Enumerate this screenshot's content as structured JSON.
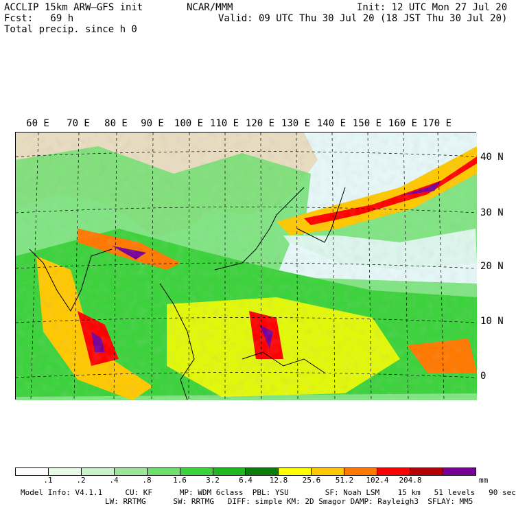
{
  "header": {
    "model": "ACCLIP 15km ARW–GFS init",
    "org": "NCAR/MMM",
    "init": "Init: 12 UTC Mon 27 Jul 20",
    "fcst": "Fcst:   69 h",
    "valid": "Valid: 09 UTC Thu 30 Jul 20 (18 JST Thu 30 Jul 20)",
    "field": "Total precip. since h 0"
  },
  "map": {
    "lon_labels": [
      "60 E",
      "70 E",
      "80 E",
      "90 E",
      "100 E",
      "110 E",
      "120 E",
      "130 E",
      "140 E",
      "150 E",
      "160 E",
      "170 E"
    ],
    "lat_labels": [
      "40 N",
      "30 N",
      "20 N",
      "10 N",
      "0"
    ],
    "colors": {
      "ocean": "#e6f7f7",
      "land": "#e8dcc0",
      "boundary": "#000000"
    }
  },
  "colorbar": {
    "ticks": [
      ".1",
      ".2",
      ".4",
      ".8",
      "1.6",
      "3.2",
      "6.4",
      "12.8",
      "25.6",
      "51.2",
      "102.4",
      "204.8"
    ],
    "unit": "mm",
    "colors": [
      "#ffffff",
      "#e6fae6",
      "#c8f2c8",
      "#9be69b",
      "#6ee06e",
      "#3cd23c",
      "#1eb91e",
      "#0a7d0a",
      "#ffff00",
      "#ffc800",
      "#ff7800",
      "#ff0000",
      "#b40000",
      "#780096"
    ]
  },
  "footer": {
    "line1": "Model Info: V4.1.1     CU: KF      MP: WDM 6class  PBL: YSU        SF: Noah LSM    15 km   51 levels   90 sec",
    "line2": "LW: RRTMG      SW: RRTMG   DIFF: simple KM: 2D Smagor DAMP: Rayleigh3  SFLAY: MM5"
  }
}
